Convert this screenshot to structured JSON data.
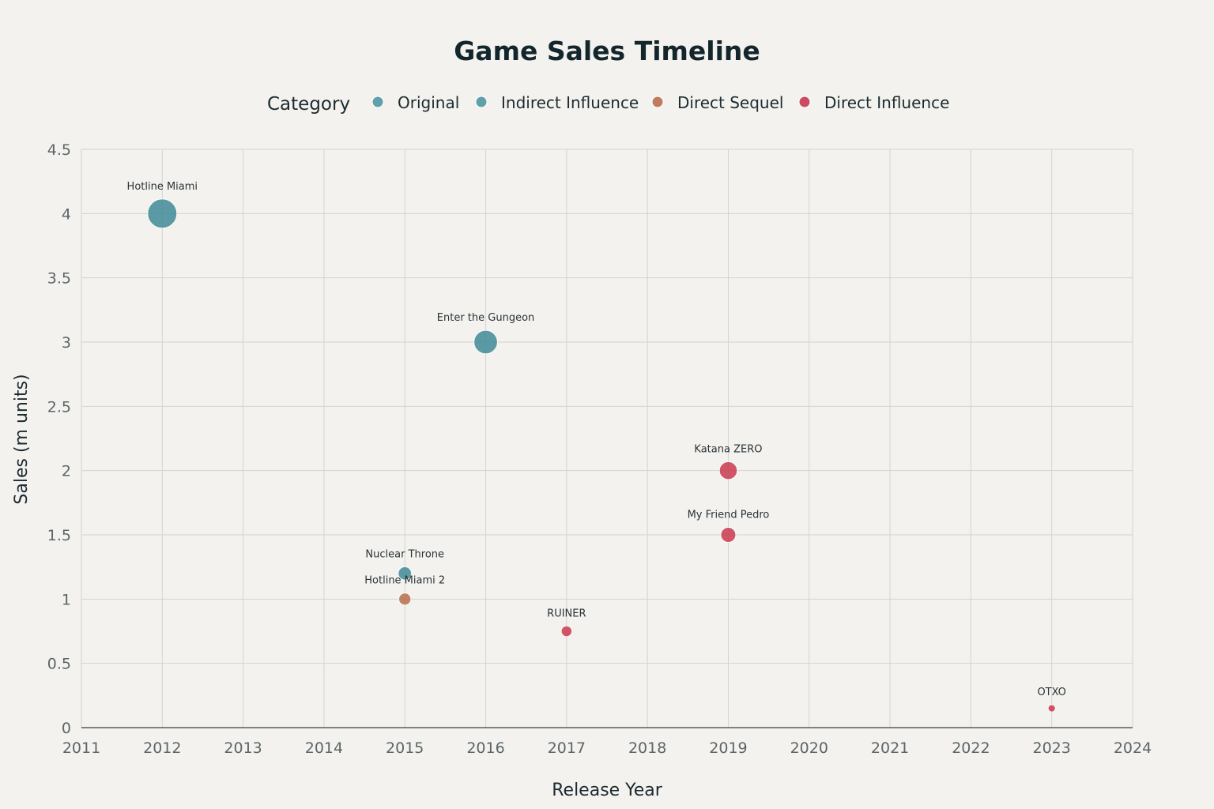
{
  "chart_data": {
    "type": "scatter",
    "title": "Game Sales Timeline",
    "xlabel": "Release Year",
    "ylabel": "Sales (m units)",
    "xlim": [
      2011,
      2024
    ],
    "ylim": [
      0,
      4.5
    ],
    "x_ticks": [
      "2011",
      "2012",
      "2013",
      "2014",
      "2015",
      "2016",
      "2017",
      "2018",
      "2019",
      "2020",
      "2021",
      "2022",
      "2023",
      "2024"
    ],
    "y_ticks": [
      "0",
      "0.5",
      "1",
      "1.5",
      "2",
      "2.5",
      "3",
      "3.5",
      "4",
      "4.5"
    ],
    "grid": true,
    "legend": {
      "title": "Category",
      "placement": "top",
      "entries": [
        {
          "name": "Original",
          "color": "#4f97a3"
        },
        {
          "name": "Indirect Influence",
          "color": "#4f97a3"
        },
        {
          "name": "Direct Sequel",
          "color": "#b86f4c"
        },
        {
          "name": "Direct Influence",
          "color": "#c8394f"
        }
      ]
    },
    "points": [
      {
        "label": "Hotline Miami",
        "year": 2012,
        "sales": 4.0,
        "category": "Original",
        "color": "#3f8b98"
      },
      {
        "label": "Enter the Gungeon",
        "year": 2016,
        "sales": 3.0,
        "category": "Indirect Influence",
        "color": "#3f8b98"
      },
      {
        "label": "Nuclear Throne",
        "year": 2015,
        "sales": 1.2,
        "category": "Indirect Influence",
        "color": "#3f8b98"
      },
      {
        "label": "Hotline Miami 2",
        "year": 2015,
        "sales": 1.0,
        "category": "Direct Sequel",
        "color": "#b86f4c"
      },
      {
        "label": "RUINER",
        "year": 2017,
        "sales": 0.75,
        "category": "Direct Influence",
        "color": "#c8394f"
      },
      {
        "label": "Katana ZERO",
        "year": 2019,
        "sales": 2.0,
        "category": "Direct Influence",
        "color": "#c8394f"
      },
      {
        "label": "My Friend Pedro",
        "year": 2019,
        "sales": 1.5,
        "category": "Direct Influence",
        "color": "#c8394f"
      },
      {
        "label": "OTXO",
        "year": 2023,
        "sales": 0.15,
        "category": "Direct Influence",
        "color": "#c8394f"
      }
    ]
  }
}
